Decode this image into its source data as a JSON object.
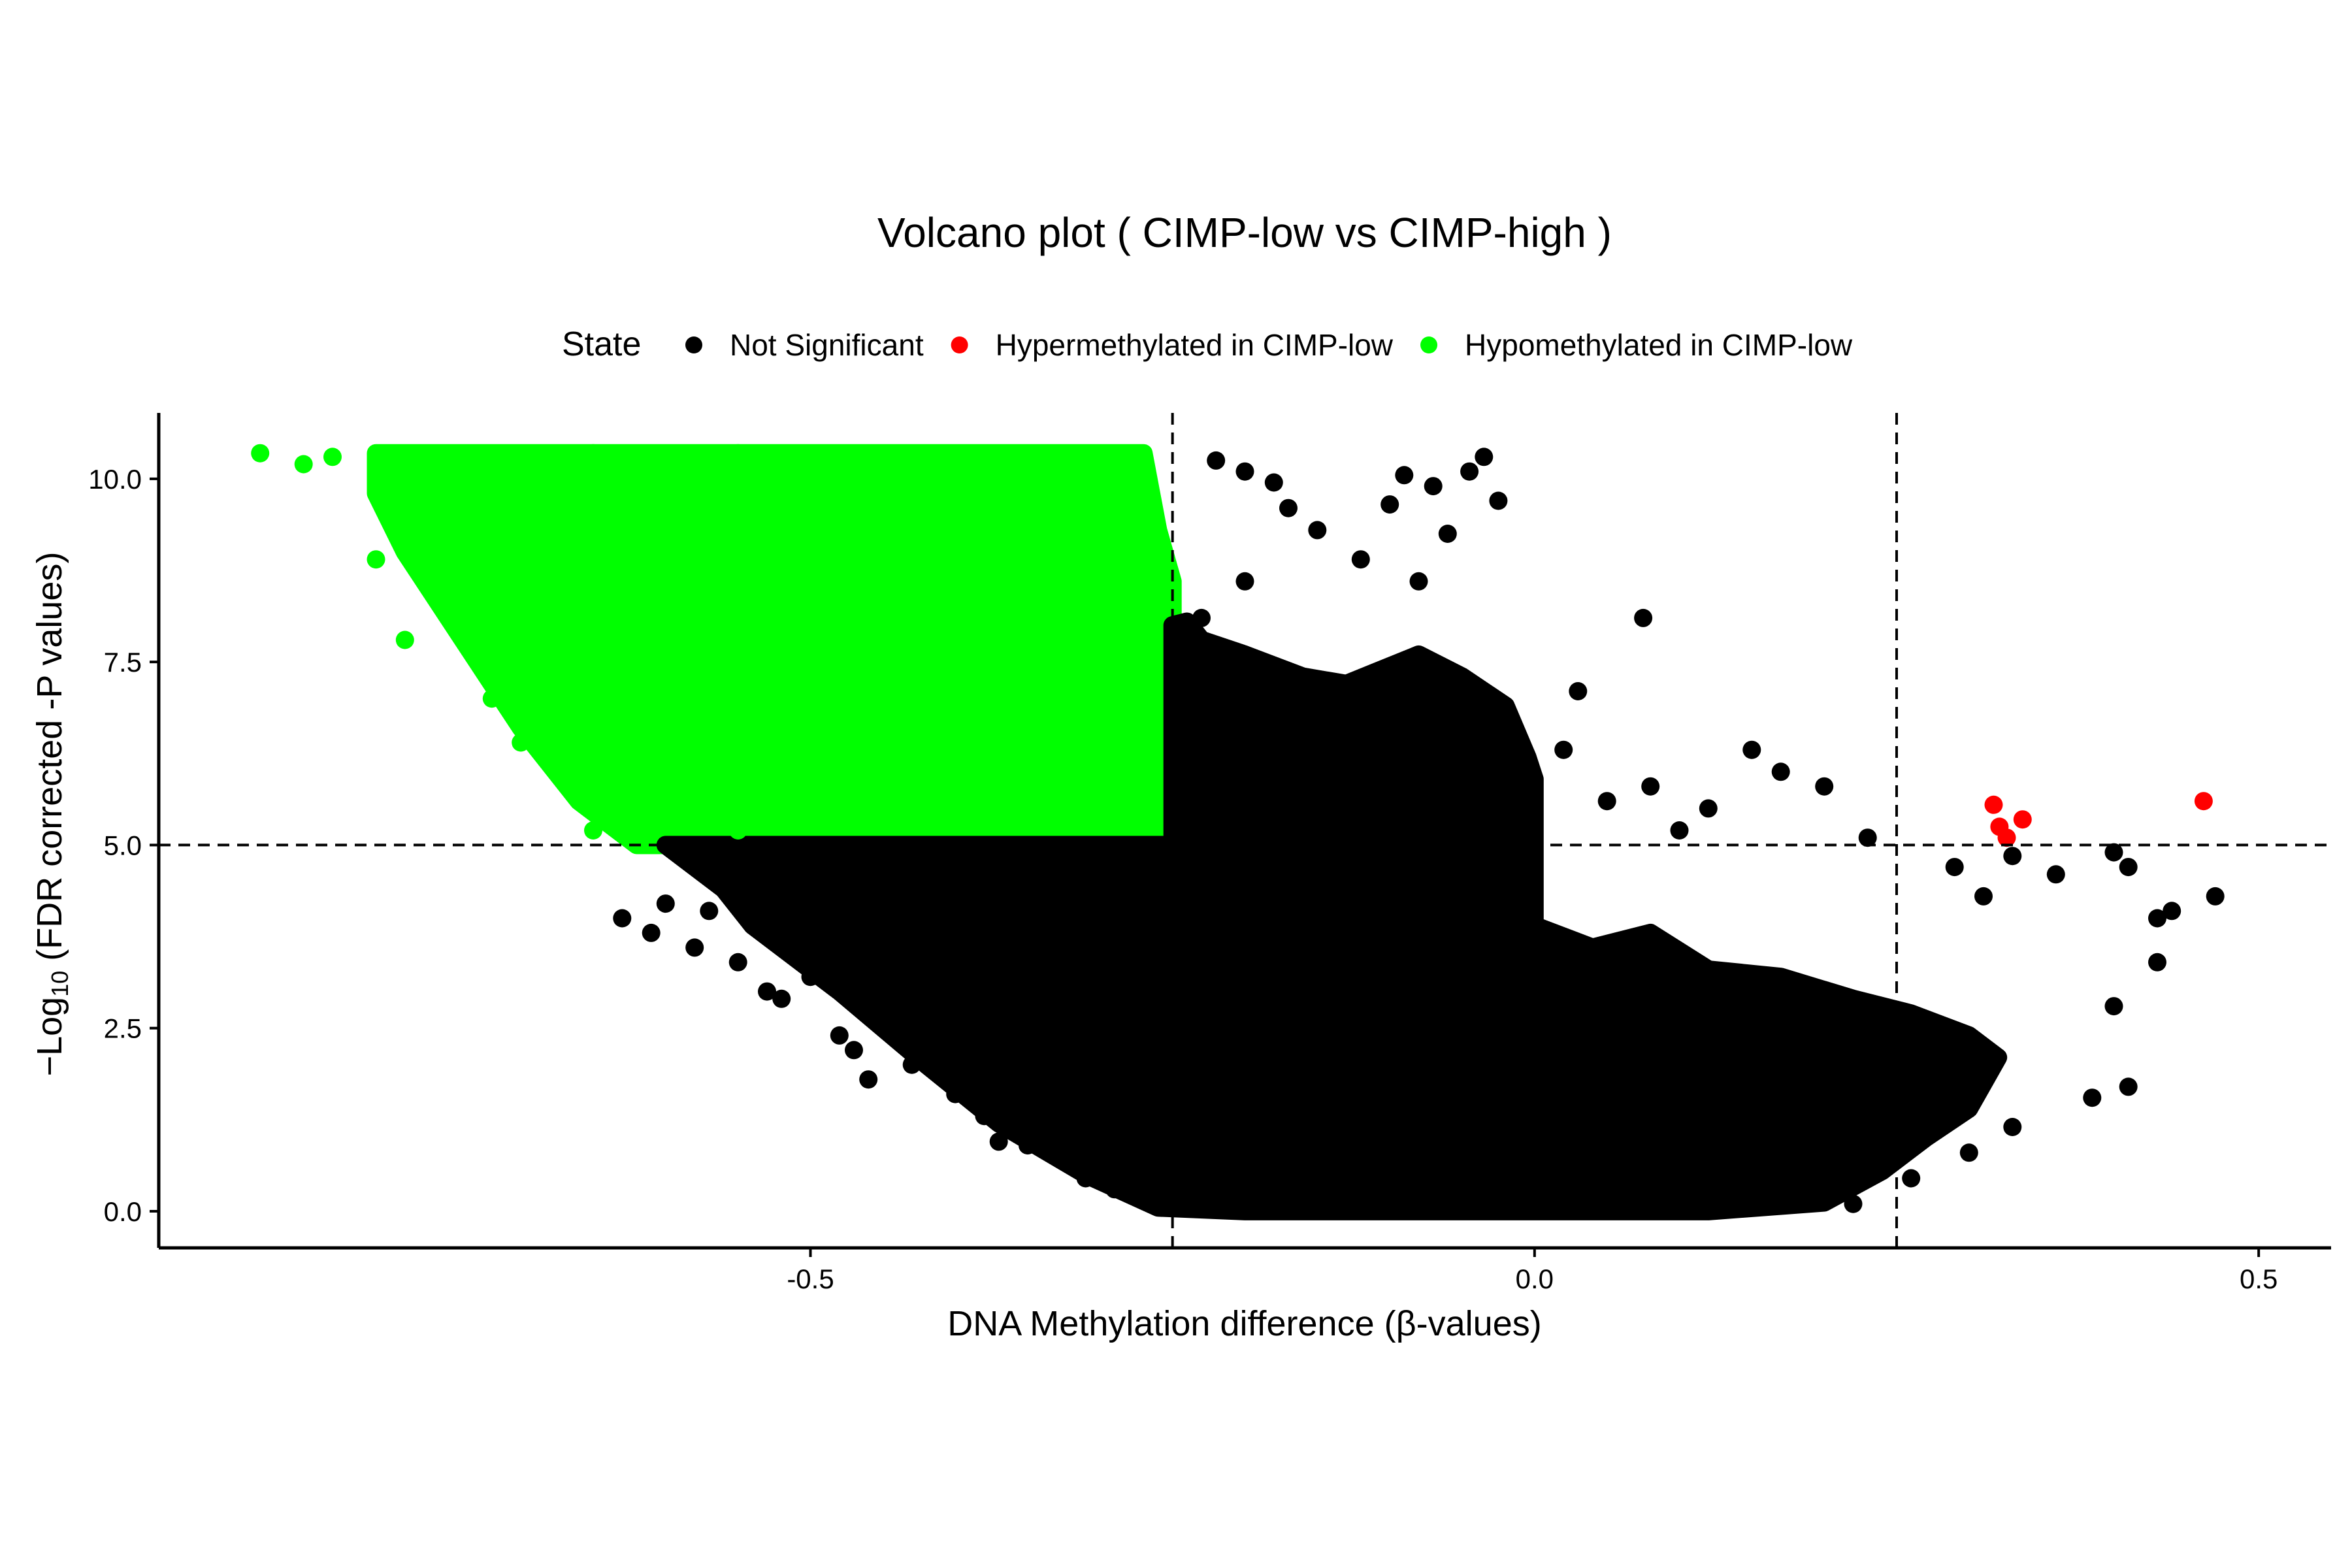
{
  "chart_data": {
    "type": "scatter",
    "title": "Volcano plot ( CIMP-low vs CIMP-high )",
    "xlabel": "DNA Methylation difference (β-values)",
    "ylabel": {
      "prefix": "−Log",
      "subscript": "10",
      "suffix": " (FDR corrected -P values)"
    },
    "xlim": [
      -0.95,
      0.55
    ],
    "ylim": [
      -0.5,
      10.9
    ],
    "x_ticks": [
      {
        "value": -0.5,
        "label": "-0.5"
      },
      {
        "value": 0.0,
        "label": "0.0"
      },
      {
        "value": 0.5,
        "label": "0.5"
      }
    ],
    "y_ticks": [
      {
        "value": 0.0,
        "label": "0.0"
      },
      {
        "value": 2.5,
        "label": "2.5"
      },
      {
        "value": 5.0,
        "label": "5.0"
      },
      {
        "value": 7.5,
        "label": "7.5"
      },
      {
        "value": 10.0,
        "label": "10.0"
      }
    ],
    "thresholds": {
      "x": [
        -0.25,
        0.25
      ],
      "y": 5.0
    },
    "grid": false,
    "legend": {
      "title": "State",
      "position": "top"
    },
    "series": [
      {
        "name": "Not Significant",
        "color": "#000000",
        "points": [
          [
            -0.63,
            4.0
          ],
          [
            -0.61,
            3.8
          ],
          [
            -0.6,
            4.2
          ],
          [
            -0.58,
            3.6
          ],
          [
            -0.57,
            4.1
          ],
          [
            -0.55,
            3.4
          ],
          [
            -0.53,
            3.0
          ],
          [
            -0.52,
            2.9
          ],
          [
            -0.5,
            3.2
          ],
          [
            -0.48,
            2.4
          ],
          [
            -0.47,
            2.2
          ],
          [
            -0.46,
            1.8
          ],
          [
            -0.45,
            2.6
          ],
          [
            -0.43,
            2.0
          ],
          [
            -0.4,
            1.6
          ],
          [
            -0.38,
            1.3
          ],
          [
            -0.37,
            0.95
          ],
          [
            -0.35,
            0.9
          ],
          [
            -0.33,
            0.8
          ],
          [
            -0.31,
            0.45
          ],
          [
            -0.29,
            0.3
          ],
          [
            -0.27,
            0.2
          ],
          [
            -0.22,
            10.25
          ],
          [
            -0.2,
            10.1
          ],
          [
            -0.18,
            9.95
          ],
          [
            -0.17,
            9.6
          ],
          [
            -0.15,
            9.3
          ],
          [
            -0.1,
            9.65
          ],
          [
            -0.09,
            10.05
          ],
          [
            -0.07,
            9.9
          ],
          [
            -0.06,
            9.25
          ],
          [
            -0.045,
            10.1
          ],
          [
            -0.035,
            10.3
          ],
          [
            -0.025,
            9.7
          ],
          [
            -0.08,
            8.6
          ],
          [
            -0.12,
            8.9
          ],
          [
            -0.2,
            8.6
          ],
          [
            -0.23,
            8.1
          ],
          [
            0.075,
            8.1
          ],
          [
            0.03,
            7.1
          ],
          [
            0.02,
            6.3
          ],
          [
            0.05,
            5.6
          ],
          [
            0.08,
            5.8
          ],
          [
            0.1,
            5.2
          ],
          [
            0.12,
            5.5
          ],
          [
            0.15,
            6.3
          ],
          [
            0.17,
            6.0
          ],
          [
            0.2,
            5.8
          ],
          [
            0.23,
            5.1
          ],
          [
            0.29,
            4.7
          ],
          [
            0.31,
            4.3
          ],
          [
            0.33,
            4.85
          ],
          [
            0.36,
            4.6
          ],
          [
            0.4,
            4.9
          ],
          [
            0.41,
            4.7
          ],
          [
            0.43,
            4.0
          ],
          [
            0.44,
            4.1
          ],
          [
            0.47,
            4.3
          ],
          [
            0.43,
            3.4
          ],
          [
            0.4,
            2.8
          ],
          [
            0.41,
            1.7
          ],
          [
            0.385,
            1.55
          ],
          [
            0.33,
            1.15
          ],
          [
            0.3,
            0.8
          ],
          [
            0.26,
            0.45
          ],
          [
            0.22,
            0.1
          ]
        ]
      },
      {
        "name": "Hypermethylated in CIMP-low",
        "color": "#ff0000",
        "points": [
          [
            0.317,
            5.55
          ],
          [
            0.321,
            5.25
          ],
          [
            0.326,
            5.1
          ],
          [
            0.337,
            5.35
          ],
          [
            0.462,
            5.6
          ]
        ]
      },
      {
        "name": "Hypomethylated in CIMP-low",
        "color": "#00ff00",
        "points": [
          [
            -0.88,
            10.35
          ],
          [
            -0.85,
            10.2
          ],
          [
            -0.83,
            10.3
          ],
          [
            -0.8,
            10.2
          ],
          [
            -0.78,
            9.9
          ],
          [
            -0.76,
            9.4
          ],
          [
            -0.75,
            9.8
          ],
          [
            -0.73,
            10.0
          ],
          [
            -0.8,
            8.9
          ],
          [
            -0.78,
            7.8
          ],
          [
            -0.76,
            8.6
          ],
          [
            -0.72,
            7.0
          ],
          [
            -0.7,
            6.4
          ],
          [
            -0.67,
            5.9
          ],
          [
            -0.65,
            5.2
          ],
          [
            -0.62,
            5.1
          ],
          [
            -0.6,
            5.3
          ],
          [
            -0.55,
            5.2
          ],
          [
            -0.5,
            5.4
          ],
          [
            -0.45,
            5.3
          ],
          [
            -0.4,
            5.8
          ],
          [
            -0.35,
            6.8
          ],
          [
            -0.3,
            7.6
          ],
          [
            -0.26,
            8.6
          ],
          [
            -0.27,
            9.9
          ],
          [
            -0.3,
            10.3
          ],
          [
            -0.36,
            10.2
          ],
          [
            -0.45,
            10.3
          ],
          [
            -0.55,
            10.35
          ],
          [
            -0.65,
            10.35
          ],
          [
            -0.7,
            9.5
          ],
          [
            -0.62,
            8.5
          ],
          [
            -0.5,
            7.5
          ]
        ]
      }
    ],
    "dense_regions": [
      {
        "series": "Hypomethylated in CIMP-low",
        "polygon": [
          [
            -0.8,
            10.35
          ],
          [
            -0.27,
            10.35
          ],
          [
            -0.26,
            9.3
          ],
          [
            -0.25,
            8.6
          ],
          [
            -0.25,
            5.0
          ],
          [
            -0.62,
            5.0
          ],
          [
            -0.66,
            5.6
          ],
          [
            -0.7,
            6.6
          ],
          [
            -0.74,
            7.8
          ],
          [
            -0.78,
            9.0
          ],
          [
            -0.8,
            9.8
          ]
        ]
      },
      {
        "series": "Not Significant",
        "polygon": [
          [
            -0.25,
            8.0
          ],
          [
            -0.24,
            8.05
          ],
          [
            -0.23,
            7.8
          ],
          [
            -0.2,
            7.6
          ],
          [
            -0.16,
            7.3
          ],
          [
            -0.13,
            7.2
          ],
          [
            -0.08,
            7.6
          ],
          [
            -0.05,
            7.3
          ],
          [
            -0.02,
            6.9
          ],
          [
            -0.005,
            6.2
          ],
          [
            0.0,
            5.9
          ],
          [
            0.0,
            3.9
          ],
          [
            0.04,
            3.6
          ],
          [
            0.08,
            3.8
          ],
          [
            0.12,
            3.3
          ],
          [
            0.17,
            3.2
          ],
          [
            0.22,
            2.9
          ],
          [
            0.26,
            2.7
          ],
          [
            0.3,
            2.4
          ],
          [
            0.32,
            2.1
          ],
          [
            0.3,
            1.4
          ],
          [
            0.27,
            1.0
          ],
          [
            0.24,
            0.55
          ],
          [
            0.2,
            0.12
          ],
          [
            0.12,
            0.0
          ],
          [
            -0.2,
            0.0
          ],
          [
            -0.26,
            0.05
          ],
          [
            -0.31,
            0.5
          ],
          [
            -0.37,
            1.2
          ],
          [
            -0.42,
            2.0
          ],
          [
            -0.48,
            3.0
          ],
          [
            -0.54,
            3.9
          ],
          [
            -0.56,
            4.4
          ],
          [
            -0.6,
            5.0
          ],
          [
            -0.25,
            5.0
          ]
        ]
      }
    ]
  }
}
